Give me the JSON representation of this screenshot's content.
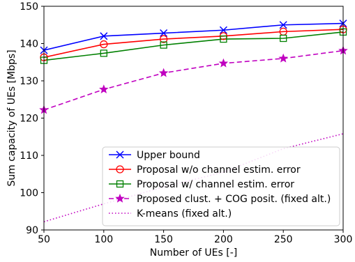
{
  "chart_data": {
    "type": "line",
    "xlabel": "Number of UEs [-]",
    "ylabel": "Sum capacity of UEs [Mbps]",
    "xlim": [
      50,
      300
    ],
    "ylim": [
      90,
      150
    ],
    "xticks": [
      "50",
      "100",
      "150",
      "200",
      "250",
      "300"
    ],
    "yticks": [
      "90",
      "100",
      "110",
      "120",
      "130",
      "140",
      "150"
    ],
    "grid": false,
    "legend_position": "bottom-right",
    "series": [
      {
        "name": "Upper bound",
        "color": "#0000ff",
        "line": "solid",
        "marker": "x",
        "x": [
          50,
          100,
          150,
          200,
          250,
          300
        ],
        "y": [
          138.2,
          142.0,
          142.8,
          143.6,
          145.0,
          145.4
        ]
      },
      {
        "name": "Proposal w/o channel estim. error",
        "color": "#ff0000",
        "line": "solid",
        "marker": "circle",
        "x": [
          50,
          100,
          150,
          200,
          250,
          300
        ],
        "y": [
          136.3,
          139.8,
          141.2,
          142.0,
          143.2,
          143.8
        ]
      },
      {
        "name": "Proposal w/ channel estim. error",
        "color": "#008000",
        "line": "solid",
        "marker": "square",
        "x": [
          50,
          100,
          150,
          200,
          250,
          300
        ],
        "y": [
          135.5,
          137.4,
          139.6,
          141.2,
          141.4,
          143.1
        ]
      },
      {
        "name": "Proposed clust. + COG posit. (fixed alt.)",
        "color": "#c000c0",
        "line": "dashed",
        "marker": "star",
        "x": [
          50,
          100,
          150,
          200,
          250,
          300
        ],
        "y": [
          122.2,
          127.7,
          132.1,
          134.7,
          136.0,
          138.1
        ]
      },
      {
        "name": "K-means (fixed alt.)",
        "color": "#c000c0",
        "line": "dotted",
        "marker": "none",
        "x": [
          50,
          100,
          150,
          200,
          250,
          300
        ],
        "y": [
          92.2,
          97.0,
          101.5,
          105.5,
          111.8,
          115.8
        ]
      }
    ]
  }
}
